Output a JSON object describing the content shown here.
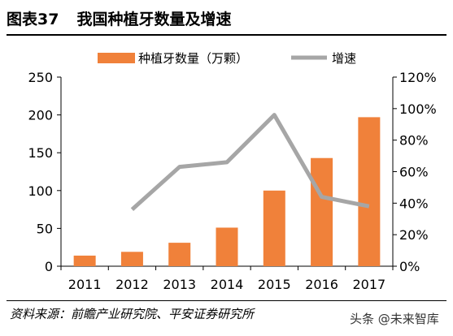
{
  "header": {
    "figure_number": "图表37",
    "title": "我国种植牙数量及增速"
  },
  "footer": {
    "source": "资料来源：前瞻产业研究院、平安证券研究所",
    "watermark": "头条 @未来智库"
  },
  "colors": {
    "bar": "#F0813A",
    "line": "#A6A6A6",
    "text": "#000000"
  },
  "chart_data": {
    "type": "bar",
    "categories": [
      "2011",
      "2012",
      "2013",
      "2014",
      "2015",
      "2016",
      "2017"
    ],
    "series": [
      {
        "name": "种植牙数量（万颗）",
        "type": "bar",
        "axis": "left",
        "values": [
          14,
          19,
          31,
          51,
          100,
          143,
          197
        ]
      },
      {
        "name": "增速",
        "type": "line",
        "axis": "right",
        "values": [
          null,
          36,
          63,
          66,
          96,
          44,
          38
        ]
      }
    ],
    "y_left": {
      "min": 0,
      "max": 250,
      "ticks": [
        "0",
        "50",
        "100",
        "150",
        "200",
        "250"
      ]
    },
    "y_right": {
      "min": 0,
      "max": 120,
      "ticks": [
        "0%",
        "20%",
        "40%",
        "60%",
        "80%",
        "100%",
        "120%"
      ]
    },
    "legend_position": "top",
    "grid": false
  }
}
